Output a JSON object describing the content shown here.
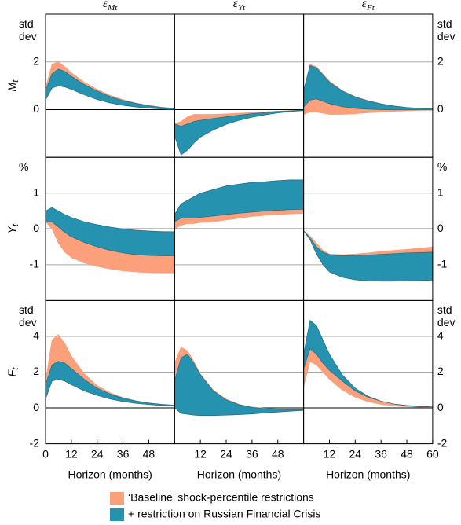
{
  "chart_data": {
    "type": "band",
    "x": [
      0,
      3,
      6,
      9,
      12,
      18,
      24,
      30,
      36,
      42,
      48,
      54,
      60
    ],
    "xlim": [
      0,
      60
    ],
    "xticks": [
      0,
      12,
      24,
      36,
      48,
      60
    ],
    "xlabel": "Horizon (months)",
    "columns": [
      {
        "symbol": "ε",
        "subscript": "Mt"
      },
      {
        "symbol": "ε",
        "subscript": "Yt"
      },
      {
        "symbol": "ε",
        "subscript": "Ft"
      }
    ],
    "rows": [
      {
        "symbol": "M",
        "subscript": "t",
        "unit": "std dev",
        "ylim": [
          -2,
          4
        ],
        "yticks": [
          0,
          2
        ]
      },
      {
        "symbol": "Y",
        "subscript": "t",
        "unit": "%",
        "ylim": [
          -2,
          2
        ],
        "yticks": [
          -1,
          0,
          1
        ]
      },
      {
        "symbol": "F",
        "subscript": "t",
        "unit": "std dev",
        "ylim": [
          -2,
          6
        ],
        "yticks": [
          -2,
          0,
          2,
          4
        ]
      }
    ],
    "series": [
      {
        "name": "‘Baseline’ shock-percentile restrictions",
        "color": "#fca07b"
      },
      {
        "name": "+ restriction on Russian Financial Crisis",
        "color": "#2592b0"
      }
    ],
    "panels": [
      [
        {
          "bands": [
            {
              "upper": [
                0.9,
                1.9,
                2.0,
                1.8,
                1.55,
                1.15,
                0.85,
                0.6,
                0.42,
                0.28,
                0.18,
                0.1,
                0.05
              ],
              "lower": [
                0.4,
                0.9,
                1.0,
                0.95,
                0.85,
                0.65,
                0.45,
                0.3,
                0.2,
                0.12,
                0.07,
                0.03,
                0.01
              ]
            },
            {
              "upper": [
                0.8,
                1.5,
                1.7,
                1.6,
                1.4,
                1.05,
                0.78,
                0.55,
                0.38,
                0.26,
                0.16,
                0.09,
                0.05
              ],
              "lower": [
                0.4,
                0.9,
                1.0,
                0.95,
                0.85,
                0.62,
                0.42,
                0.28,
                0.18,
                0.11,
                0.06,
                0.03,
                0.01
              ]
            }
          ]
        },
        {
          "bands": [
            {
              "upper": [
                -0.6,
                -0.5,
                -0.3,
                -0.2,
                -0.2,
                -0.2,
                -0.18,
                -0.15,
                -0.12,
                -0.09,
                -0.06,
                -0.04,
                -0.02
              ],
              "lower": [
                -0.9,
                -1.0,
                -0.9,
                -0.8,
                -0.7,
                -0.55,
                -0.42,
                -0.32,
                -0.24,
                -0.17,
                -0.11,
                -0.07,
                -0.03
              ]
            },
            {
              "upper": [
                -0.6,
                -0.7,
                -0.6,
                -0.5,
                -0.45,
                -0.37,
                -0.3,
                -0.23,
                -0.17,
                -0.12,
                -0.08,
                -0.05,
                -0.02
              ],
              "lower": [
                -1.1,
                -1.9,
                -1.7,
                -1.4,
                -1.15,
                -0.85,
                -0.62,
                -0.45,
                -0.32,
                -0.22,
                -0.14,
                -0.08,
                -0.04
              ]
            }
          ]
        },
        {
          "bands": [
            {
              "upper": [
                0.8,
                1.9,
                1.8,
                1.5,
                1.2,
                0.8,
                0.55,
                0.38,
                0.25,
                0.15,
                0.09,
                0.05,
                0.03
              ],
              "lower": [
                -0.2,
                -0.1,
                -0.1,
                -0.15,
                -0.2,
                -0.2,
                -0.17,
                -0.13,
                -0.1,
                -0.07,
                -0.05,
                -0.03,
                -0.02
              ]
            },
            {
              "upper": [
                0.8,
                1.85,
                1.75,
                1.45,
                1.15,
                0.78,
                0.53,
                0.36,
                0.24,
                0.15,
                0.09,
                0.05,
                0.03
              ],
              "lower": [
                0.1,
                0.4,
                0.45,
                0.35,
                0.25,
                0.12,
                0.05,
                0.02,
                0,
                -0.01,
                -0.01,
                -0.01,
                -0.01
              ]
            }
          ]
        }
      ],
      [
        {
          "bands": [
            {
              "upper": [
                0.5,
                0.55,
                0.45,
                0.35,
                0.28,
                0.18,
                0.1,
                0.05,
                0,
                -0.03,
                -0.06,
                -0.07,
                -0.08
              ],
              "lower": [
                0.2,
                0.0,
                -0.4,
                -0.65,
                -0.8,
                -0.95,
                -1.05,
                -1.12,
                -1.17,
                -1.2,
                -1.22,
                -1.23,
                -1.23
              ]
            },
            {
              "upper": [
                0.5,
                0.6,
                0.5,
                0.4,
                0.32,
                0.2,
                0.12,
                0.05,
                0.0,
                -0.04,
                -0.06,
                -0.08,
                -0.08
              ],
              "lower": [
                0.2,
                0.2,
                0.05,
                -0.1,
                -0.22,
                -0.38,
                -0.5,
                -0.6,
                -0.67,
                -0.72,
                -0.74,
                -0.75,
                -0.75
              ]
            }
          ]
        },
        {
          "bands": [
            {
              "upper": [
                0.4,
                0.7,
                0.8,
                0.9,
                1.0,
                1.1,
                1.2,
                1.25,
                1.3,
                1.32,
                1.35,
                1.37,
                1.37
              ],
              "lower": [
                0.0,
                0.1,
                0.15,
                0.15,
                0.18,
                0.2,
                0.25,
                0.3,
                0.35,
                0.38,
                0.4,
                0.42,
                0.43
              ]
            },
            {
              "upper": [
                0.4,
                0.7,
                0.8,
                0.9,
                1.0,
                1.1,
                1.2,
                1.25,
                1.3,
                1.32,
                1.35,
                1.37,
                1.37
              ],
              "lower": [
                0.2,
                0.3,
                0.3,
                0.3,
                0.32,
                0.36,
                0.4,
                0.44,
                0.47,
                0.5,
                0.52,
                0.54,
                0.55
              ]
            }
          ]
        },
        {
          "bands": [
            {
              "upper": [
                -0.05,
                -0.2,
                -0.4,
                -0.6,
                -0.7,
                -0.72,
                -0.7,
                -0.67,
                -0.63,
                -0.6,
                -0.57,
                -0.54,
                -0.5
              ],
              "lower": [
                -0.05,
                -0.3,
                -0.7,
                -1.0,
                -1.2,
                -1.35,
                -1.42,
                -1.45,
                -1.46,
                -1.46,
                -1.45,
                -1.44,
                -1.43
              ]
            },
            {
              "upper": [
                -0.05,
                -0.25,
                -0.5,
                -0.65,
                -0.72,
                -0.75,
                -0.74,
                -0.73,
                -0.71,
                -0.69,
                -0.67,
                -0.66,
                -0.65
              ],
              "lower": [
                -0.05,
                -0.3,
                -0.7,
                -1.0,
                -1.2,
                -1.35,
                -1.42,
                -1.45,
                -1.46,
                -1.46,
                -1.45,
                -1.44,
                -1.43
              ]
            }
          ]
        }
      ],
      [
        {
          "bands": [
            {
              "upper": [
                1.5,
                3.8,
                4.1,
                3.6,
                2.9,
                1.9,
                1.25,
                0.85,
                0.58,
                0.4,
                0.28,
                0.2,
                0.15
              ],
              "lower": [
                0.5,
                1.5,
                1.6,
                1.5,
                1.3,
                0.95,
                0.7,
                0.5,
                0.36,
                0.26,
                0.19,
                0.14,
                0.1
              ]
            },
            {
              "upper": [
                1.3,
                2.4,
                2.6,
                2.5,
                2.2,
                1.6,
                1.1,
                0.78,
                0.55,
                0.39,
                0.28,
                0.2,
                0.15
              ],
              "lower": [
                0.5,
                1.5,
                1.6,
                1.5,
                1.3,
                0.95,
                0.7,
                0.5,
                0.36,
                0.26,
                0.19,
                0.14,
                0.1
              ]
            }
          ]
        },
        {
          "bands": [
            {
              "upper": [
                2.5,
                3.4,
                3.2,
                2.6,
                1.9,
                1.0,
                0.5,
                0.2,
                0.05,
                -0.02,
                -0.06,
                -0.08,
                -0.1
              ],
              "lower": [
                0,
                -0.3,
                -0.35,
                -0.4,
                -0.42,
                -0.42,
                -0.4,
                -0.37,
                -0.33,
                -0.28,
                -0.23,
                -0.18,
                -0.14
              ]
            },
            {
              "upper": [
                1.5,
                2.8,
                3.0,
                2.5,
                1.85,
                0.95,
                0.45,
                0.18,
                0.03,
                -0.04,
                -0.07,
                -0.09,
                -0.1
              ],
              "lower": [
                0,
                -0.3,
                -0.35,
                -0.4,
                -0.42,
                -0.42,
                -0.4,
                -0.37,
                -0.33,
                -0.28,
                -0.23,
                -0.18,
                -0.14
              ]
            }
          ]
        },
        {
          "bands": [
            {
              "upper": [
                2.8,
                4.6,
                4.4,
                3.6,
                2.8,
                1.7,
                1.0,
                0.6,
                0.35,
                0.2,
                0.12,
                0.08,
                0.05
              ],
              "lower": [
                1.2,
                2.6,
                2.4,
                2.0,
                1.6,
                1.0,
                0.6,
                0.35,
                0.2,
                0.12,
                0.07,
                0.04,
                0.02
              ]
            },
            {
              "upper": [
                3.0,
                4.9,
                4.6,
                3.8,
                3.0,
                1.85,
                1.1,
                0.65,
                0.38,
                0.22,
                0.14,
                0.09,
                0.06
              ],
              "lower": [
                2.2,
                3.3,
                3.0,
                2.5,
                2.1,
                1.5,
                0.95,
                0.6,
                0.38,
                0.22,
                0.12,
                0.06,
                0.03
              ]
            }
          ]
        }
      ]
    ]
  }
}
